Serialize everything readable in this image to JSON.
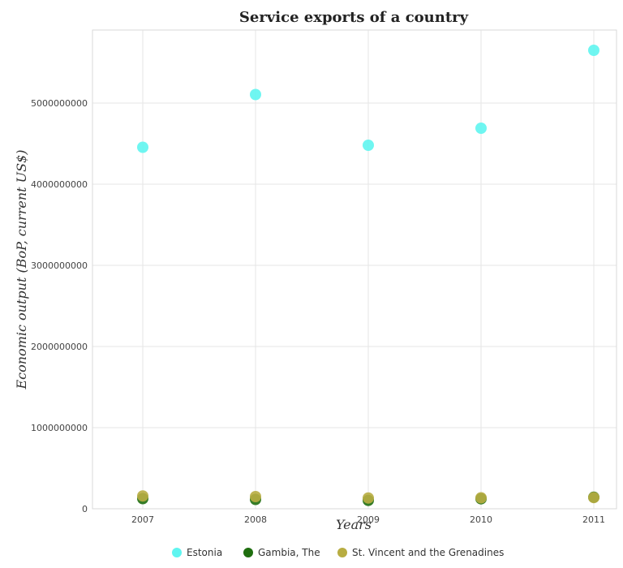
{
  "chart_data": {
    "type": "scatter",
    "title": "Service exports of a country",
    "xlabel": "Years",
    "ylabel": "Economic output (BoP, current US$)",
    "x": [
      "2007",
      "2008",
      "2009",
      "2010",
      "2011"
    ],
    "yticks": [
      "0",
      "1000000000",
      "2000000000",
      "3000000000",
      "4000000000",
      "5000000000"
    ],
    "ylim": [
      0,
      5900000000
    ],
    "grid": true,
    "legend_position": "bottom-center",
    "series": [
      {
        "name": "Estonia",
        "color": "#5ff5f0",
        "values": [
          4455000000,
          5105000000,
          4480000000,
          4690000000,
          5650000000
        ]
      },
      {
        "name": "Gambia, The",
        "color": "#1f6e0f",
        "values": [
          125000000,
          115000000,
          103000000,
          123000000,
          142000000
        ]
      },
      {
        "name": "St. Vincent and the Grenadines",
        "color": "#b8ad42",
        "values": [
          158000000,
          150000000,
          133000000,
          135000000,
          138000000
        ]
      }
    ]
  }
}
